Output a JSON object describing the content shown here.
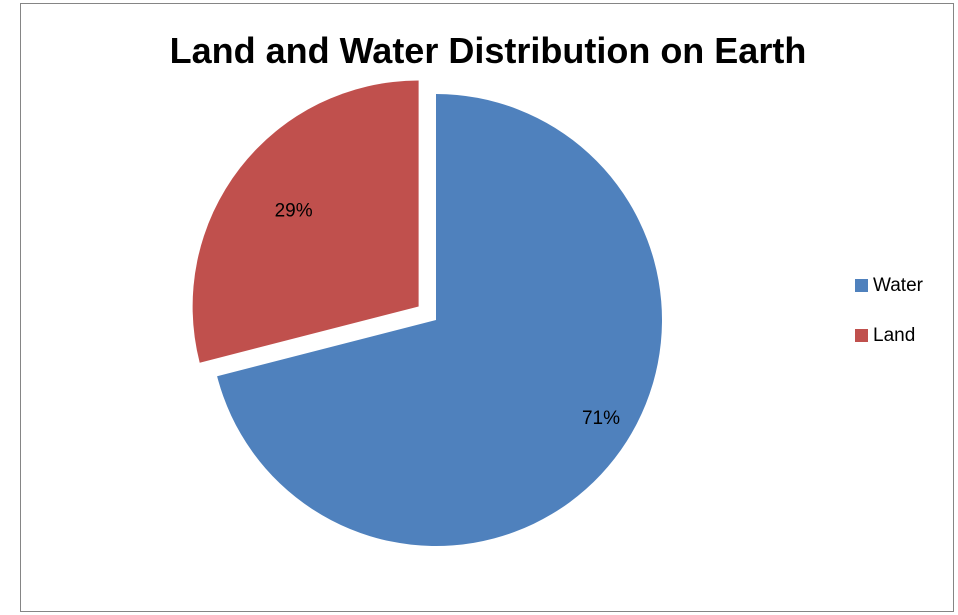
{
  "chart_data": {
    "type": "pie",
    "title": "Land and Water Distribution on Earth",
    "categories": [
      "Water",
      "Land"
    ],
    "values": [
      71,
      29
    ],
    "labels": [
      "71%",
      "29%"
    ],
    "colors": [
      "#4f81bd",
      "#c0504d"
    ],
    "exploded": [
      "Land"
    ],
    "legend_position": "right"
  }
}
